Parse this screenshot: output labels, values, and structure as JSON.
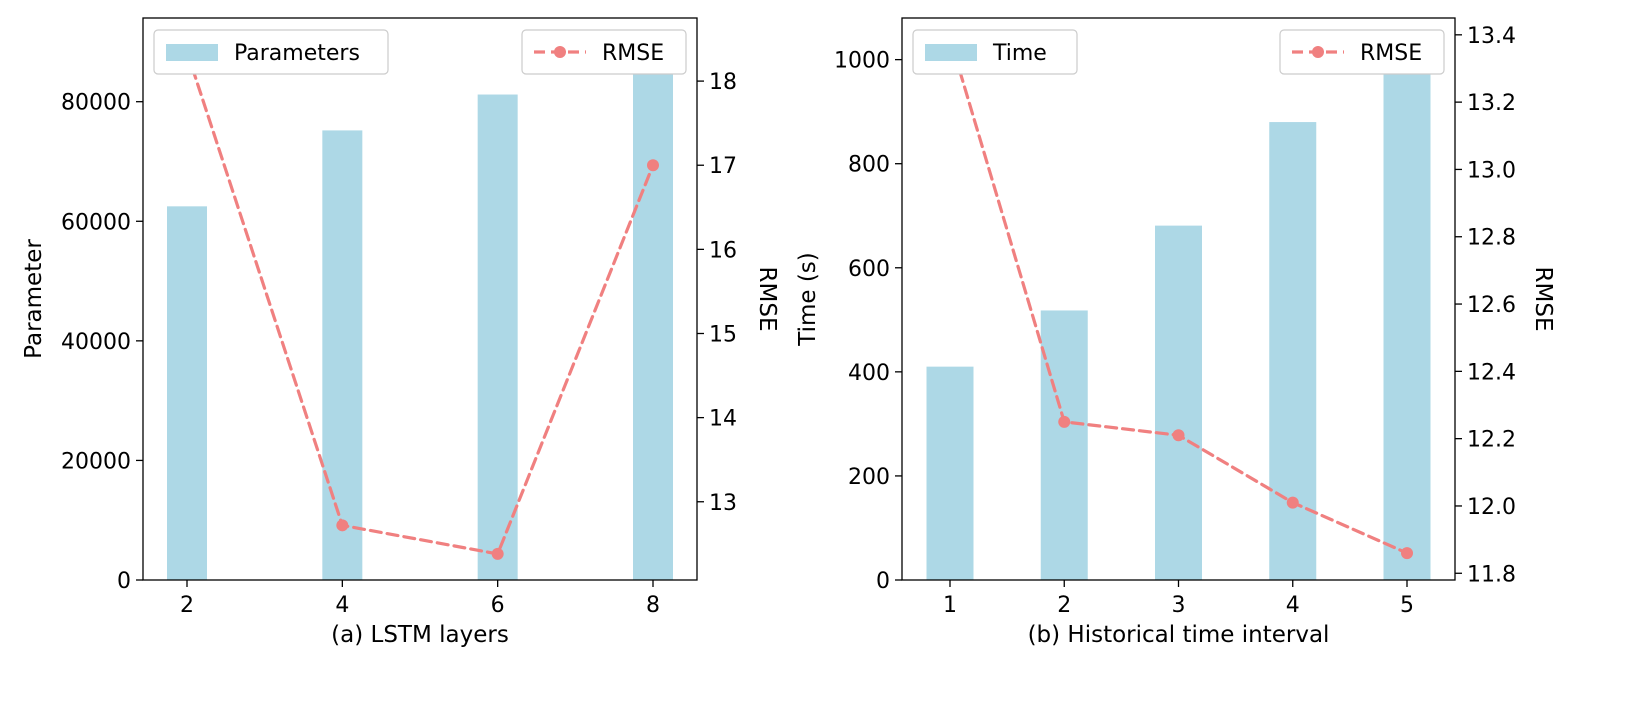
{
  "chart_data": [
    {
      "type": "bar+line",
      "xlabel": "(a) LSTM layers",
      "categories": [
        "2",
        "4",
        "6",
        "8"
      ],
      "bar_series": {
        "name": "Parameters",
        "values": [
          62500,
          75200,
          81200,
          88000
        ],
        "color": "#add8e6"
      },
      "line_series": {
        "name": "RMSE",
        "values": [
          18.35,
          12.72,
          12.38,
          17.0
        ],
        "color": "#f08080"
      },
      "ylabel_left": "Parameter",
      "ylabel_right": "RMSE",
      "ylim_left": [
        0,
        94000
      ],
      "ylim_right": [
        12.07,
        18.75
      ],
      "yticks_left": [
        0,
        20000,
        40000,
        60000,
        80000
      ],
      "yticks_right": [
        13,
        14,
        15,
        16,
        17,
        18
      ],
      "legend_bar_position": "upper-left",
      "legend_line_position": "upper-right"
    },
    {
      "type": "bar+line",
      "xlabel": "(b) Historical time interval",
      "categories": [
        "1",
        "2",
        "3",
        "4",
        "5"
      ],
      "bar_series": {
        "name": "Time",
        "values": [
          410,
          518,
          681,
          880,
          1000
        ],
        "color": "#add8e6"
      },
      "line_series": {
        "name": "RMSE",
        "values": [
          13.39,
          12.25,
          12.21,
          12.01,
          11.86
        ],
        "color": "#f08080"
      },
      "ylabel_left": "Time (s)",
      "ylabel_right": "RMSE",
      "ylim_left": [
        0,
        1080
      ],
      "ylim_right": [
        11.78,
        13.45
      ],
      "yticks_left": [
        0,
        200,
        400,
        600,
        800,
        1000
      ],
      "yticks_right": [
        11.8,
        12.0,
        12.2,
        12.4,
        12.6,
        12.8,
        13.0,
        13.2,
        13.4
      ],
      "legend_bar_position": "upper-left",
      "legend_line_position": "upper-right"
    }
  ]
}
